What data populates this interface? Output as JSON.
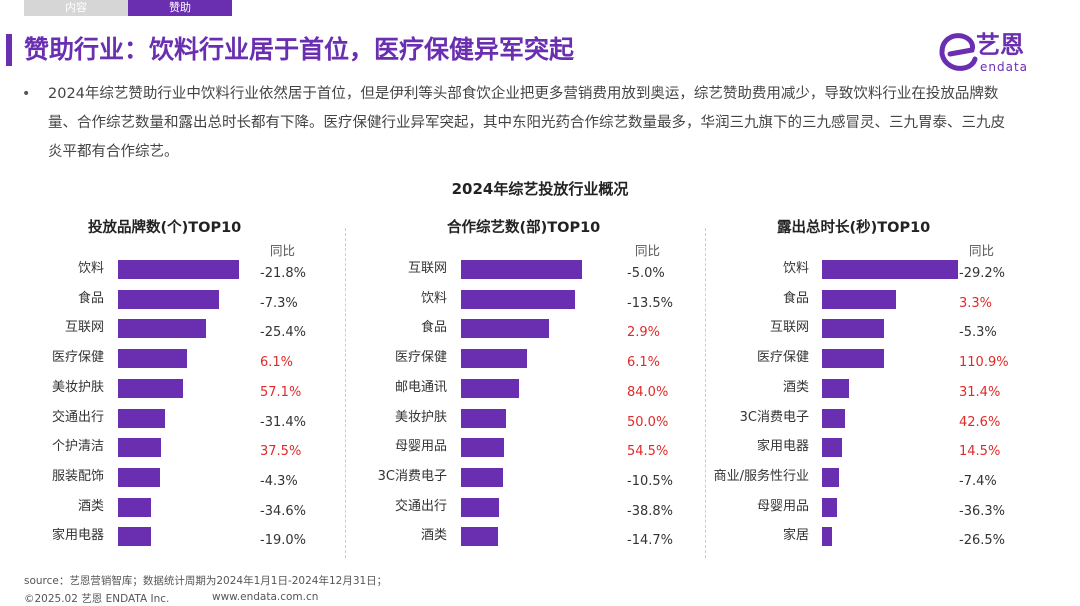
{
  "tabs": [
    {
      "label": "内容",
      "active": false
    },
    {
      "label": "赞助",
      "active": true
    }
  ],
  "header": {
    "title": "赞助行业：饮料行业居于首位，医疗保健异军突起",
    "logo_text": "艺恩",
    "logo_sub": "endata"
  },
  "description": "2024年综艺赞助行业中饮料行业依然居于首位，但是伊利等头部食饮企业把更多营销费用放到奥运，综艺赞助费用减少，导致饮料行业在投放品牌数量、合作综艺数量和露出总时长都有下降。医疗保健行业异军突起，其中东阳光药合作综艺数量最多，华润三九旗下的三九感冒灵、三九胃泰、三九皮炎平都有合作综艺。",
  "main_title": "2024年综艺投放行业概况",
  "colors": {
    "accent": "#6a2fb0",
    "positive": "#e02a2a",
    "negative": "#333333"
  },
  "chart_data": [
    {
      "type": "bar",
      "orientation": "horizontal",
      "title": "投放品牌数(个)TOP10",
      "yoy_label": "同比",
      "categories": [
        "饮料",
        "食品",
        "互联网",
        "医疗保健",
        "美妆护肤",
        "交通出行",
        "个护清洁",
        "服装配饰",
        "酒类",
        "家用电器"
      ],
      "values": [
        129,
        107,
        93,
        73,
        69,
        50,
        46,
        45,
        35,
        35
      ],
      "yoy": [
        "-21.8%",
        "-7.3%",
        "-25.4%",
        "6.1%",
        "57.1%",
        "-31.4%",
        "37.5%",
        "-4.3%",
        "-34.6%",
        "-19.0%"
      ]
    },
    {
      "type": "bar",
      "orientation": "horizontal",
      "title": "合作综艺数(部)TOP10",
      "yoy_label": "同比",
      "categories": [
        "互联网",
        "饮料",
        "食品",
        "医疗保健",
        "邮电通讯",
        "美妆护肤",
        "母婴用品",
        "3C消费电子",
        "交通出行",
        "酒类"
      ],
      "values": [
        129,
        121,
        93,
        70,
        62,
        48,
        46,
        45,
        40,
        39
      ],
      "yoy": [
        "-5.0%",
        "-13.5%",
        "2.9%",
        "6.1%",
        "84.0%",
        "50.0%",
        "54.5%",
        "-10.5%",
        "-38.8%",
        "-14.7%"
      ]
    },
    {
      "type": "bar",
      "orientation": "horizontal",
      "title": "露出总时长(秒)TOP10",
      "yoy_label": "同比",
      "categories": [
        "饮料",
        "食品",
        "互联网",
        "医疗保健",
        "酒类",
        "3C消费电子",
        "家用电器",
        "商业/服务性行业",
        "母婴用品",
        "家居"
      ],
      "values": [
        136,
        74,
        62,
        62,
        27,
        23,
        20,
        17,
        15,
        10
      ],
      "yoy": [
        "-29.2%",
        "3.3%",
        "-5.3%",
        "110.9%",
        "31.4%",
        "42.6%",
        "14.5%",
        "-7.4%",
        "-36.3%",
        "-26.5%"
      ]
    }
  ],
  "footer": {
    "source": "source：艺恩营销智库；数据统计周期为2024年1月1日-2024年12月31日；",
    "copyright": "©2025.02 艺恩 ENDATA Inc.",
    "url": "www.endata.com.cn"
  }
}
